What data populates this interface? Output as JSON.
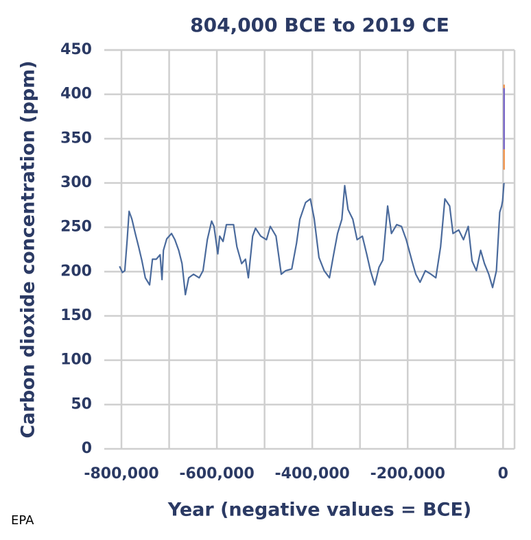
{
  "chart_data": {
    "type": "line",
    "title": "804,000 BCE to 2019 CE",
    "ylabel": "Carbon dioxide concentration (ppm)",
    "xlabel": "Year (negative values = BCE)",
    "source": "EPA",
    "xlim": [
      -836000,
      24000
    ],
    "ylim": [
      0,
      450
    ],
    "xticks": [
      {
        "value": -800000,
        "label": "-800,000"
      },
      {
        "value": -600000,
        "label": "-600,000"
      },
      {
        "value": -400000,
        "label": "-400,000"
      },
      {
        "value": -200000,
        "label": "-200,000"
      },
      0
    ],
    "xminorticks": [
      -700000,
      -500000,
      -300000,
      -100000
    ],
    "yticks": [
      0,
      50,
      100,
      150,
      200,
      250,
      300,
      350,
      400,
      450
    ],
    "grid": true,
    "series": [
      {
        "color": "#4a6a9c",
        "x": [
          -804000,
          -798000,
          -793000,
          -788000,
          -784000,
          -778000,
          -771000,
          -764000,
          -757000,
          -750000,
          -741000,
          -735000,
          -727000,
          -719000,
          -715000,
          -712000,
          -705000,
          -695000,
          -688000,
          -680000,
          -673000,
          -666000,
          -659000,
          -649000,
          -637000,
          -629000,
          -620000,
          -611000,
          -606000,
          -598000,
          -594000,
          -587000,
          -580000,
          -565000,
          -558000,
          -548000,
          -540000,
          -534000,
          -525000,
          -519000,
          -508000,
          -496000,
          -488000,
          -476000,
          -465000,
          -456000,
          -443000,
          -433000,
          -426000,
          -414000,
          -404000,
          -396000,
          -386000,
          -375000,
          -364000,
          -355000,
          -347000,
          -338000,
          -332000,
          -325000,
          -315000,
          -306000,
          -295000,
          -286000,
          -278000,
          -269000,
          -260000,
          -252000,
          -242000,
          -234000,
          -223000,
          -213000,
          -203000,
          -191000,
          -183000,
          -174000,
          -163000,
          -151000,
          -141000,
          -131000,
          -122000,
          -112000,
          -105000,
          -93000,
          -83000,
          -73000,
          -65000,
          -56000,
          -47000,
          -39000,
          -30000,
          -22000,
          -14000,
          -7000,
          -3000,
          -1000,
          1900
        ],
        "values": [
          206,
          199,
          201,
          236,
          268,
          259,
          243,
          228,
          212,
          193,
          185,
          214,
          214,
          219,
          191,
          224,
          237,
          243,
          236,
          224,
          209,
          174,
          193,
          197,
          193,
          201,
          236,
          257,
          251,
          220,
          240,
          234,
          253,
          253,
          228,
          209,
          214,
          193,
          240,
          249,
          240,
          236,
          251,
          240,
          197,
          201,
          203,
          232,
          259,
          278,
          282,
          260,
          216,
          201,
          193,
          220,
          243,
          259,
          297,
          270,
          259,
          236,
          240,
          220,
          201,
          185,
          205,
          213,
          274,
          243,
          253,
          251,
          236,
          212,
          197,
          188,
          201,
          197,
          193,
          228,
          282,
          274,
          243,
          247,
          236,
          251,
          212,
          201,
          224,
          209,
          197,
          182,
          201,
          267,
          274,
          280,
          300
        ]
      },
      {
        "color": "#f08a3c",
        "x": [
          1958,
          1990,
          2019
        ],
        "values": [
          315,
          354,
          411
        ]
      },
      {
        "color": "#6a5fd0",
        "x": [
          1980,
          2000,
          2019
        ],
        "values": [
          338,
          369,
          407
        ]
      }
    ]
  }
}
